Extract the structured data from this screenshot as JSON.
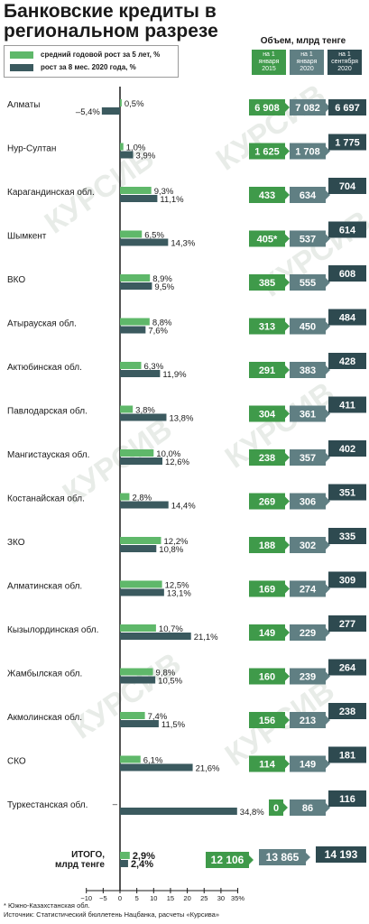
{
  "title": "Банковские кредиты в региональном разрезе",
  "watermark": "КУРСИВ",
  "legend": {
    "series1": "средний годовой рост за 5 лет, %",
    "series2": "рост за 8 мес. 2020 года, %"
  },
  "volume_title": "Объем, млрд тенге",
  "volume_columns": [
    "на 1 января 2015",
    "на 1 января 2020",
    "на 1 сентября 2020"
  ],
  "colors": {
    "series1": "#5fb86a",
    "series2": "#3b5a5f",
    "vol2015": "#3f9a4a",
    "vol2020": "#607f83",
    "volsep": "#2e4a50",
    "axis": "#1a1a1a"
  },
  "footnote": {
    "line1": "* Южно-Казахстанская обл.",
    "line2": "Источник: Статистический бюллетень Нацбанка, расчеты «Курсива»"
  },
  "chart_data": {
    "type": "bar",
    "orientation": "horizontal",
    "xlim": [
      -10,
      35
    ],
    "xticks": [
      "−10",
      "−5",
      "0",
      "5",
      "10",
      "15",
      "20",
      "25",
      "30",
      "35%"
    ],
    "categories": [
      "Алматы",
      "Нур-Султан",
      "Карагандинская обл.",
      "Шымкент",
      "ВКО",
      "Атырауская обл.",
      "Актюбинская обл.",
      "Павлодарская обл.",
      "Мангистауская обл.",
      "Костанайская обл.",
      "ЗКО",
      "Алматинская обл.",
      "Кызылординская обл.",
      "Жамбылская обл.",
      "Акмолинская обл.",
      "СКО",
      "Туркестанская обл.",
      "ИТОГО, млрд тенге"
    ],
    "series": [
      {
        "name": "средний годовой рост за 5 лет, %",
        "values": [
          0.5,
          1.0,
          9.3,
          6.5,
          8.9,
          8.8,
          6.3,
          3.8,
          10.0,
          2.8,
          12.2,
          12.5,
          10.7,
          9.8,
          7.4,
          6.1,
          null,
          2.9
        ],
        "labels": [
          "0,5%",
          "1,0%",
          "9,3%",
          "6,5%",
          "8,9%",
          "8,8%",
          "6,3%",
          "3,8%",
          "10,0%",
          "2,8%",
          "12,2%",
          "12,5%",
          "10,7%",
          "9,8%",
          "7,4%",
          "6,1%",
          "–",
          "2,9%"
        ]
      },
      {
        "name": "рост за 8 мес. 2020 года, %",
        "values": [
          -5.4,
          3.9,
          11.1,
          14.3,
          9.5,
          7.6,
          11.9,
          13.8,
          12.6,
          14.4,
          10.8,
          13.1,
          21.1,
          10.5,
          11.5,
          21.6,
          34.8,
          2.4
        ],
        "labels": [
          "–5,4%",
          "3,9%",
          "11,1%",
          "14,3%",
          "9,5%",
          "7,6%",
          "11,9%",
          "13,8%",
          "12,6%",
          "14,4%",
          "10,8%",
          "13,1%",
          "21,1%",
          "10,5%",
          "11,5%",
          "21,6%",
          "34,8%",
          "2,4%"
        ]
      }
    ],
    "volumes": {
      "jan2015": [
        "6 908",
        "1 625",
        "433",
        "405*",
        "385",
        "313",
        "291",
        "304",
        "238",
        "269",
        "188",
        "169",
        "149",
        "160",
        "156",
        "114",
        "0",
        "12 106"
      ],
      "jan2020": [
        "7 082",
        "1 708",
        "634",
        "537",
        "555",
        "450",
        "383",
        "361",
        "357",
        "306",
        "302",
        "274",
        "229",
        "239",
        "213",
        "149",
        "86",
        "13 865"
      ],
      "sep2020": [
        "6 697",
        "1 775",
        "704",
        "614",
        "608",
        "484",
        "428",
        "411",
        "402",
        "351",
        "335",
        "309",
        "277",
        "264",
        "238",
        "181",
        "116",
        "14 193"
      ],
      "jan2015_values": [
        6908,
        1625,
        433,
        405,
        385,
        313,
        291,
        304,
        238,
        269,
        188,
        169,
        149,
        160,
        156,
        114,
        0,
        12106
      ],
      "jan2020_values": [
        7082,
        1708,
        634,
        537,
        555,
        450,
        383,
        361,
        357,
        306,
        302,
        274,
        229,
        239,
        213,
        149,
        86,
        13865
      ],
      "sep2020_values": [
        6697,
        1775,
        704,
        614,
        608,
        484,
        428,
        411,
        402,
        351,
        335,
        309,
        277,
        264,
        238,
        181,
        116,
        14193
      ]
    }
  }
}
